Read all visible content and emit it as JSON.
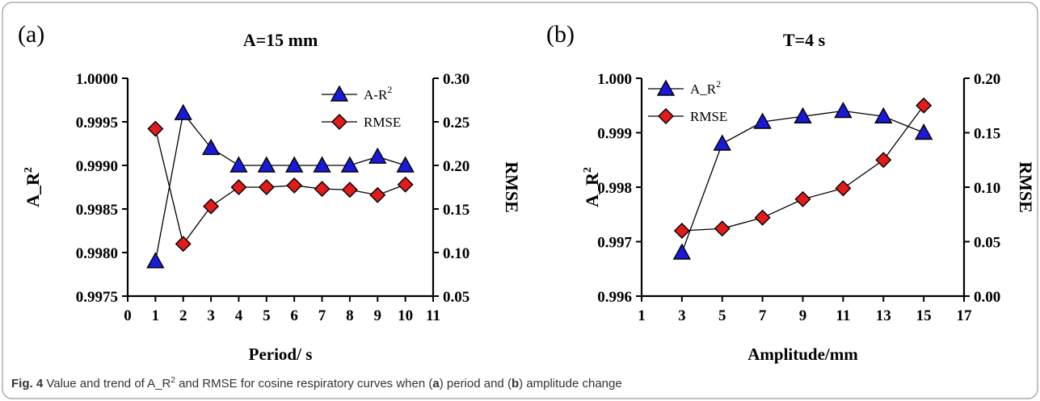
{
  "caption": {
    "fig_label": "Fig. 4",
    "text_before": "Value and trend of A_R",
    "superscript": "2",
    "text_mid1": "and RMSE for cosine respiratory curves when (",
    "label_a": "a",
    "text_mid2": ") period and (",
    "label_b": "b",
    "text_end": ") amplitude change"
  },
  "chart_data": [
    {
      "type": "line",
      "panel_label": "(a)",
      "title": "A=15 mm",
      "xlabel": "Period/ s",
      "ylabel_left": "A_R",
      "ylabel_left_sup": "2",
      "ylabel_right": "RMSE",
      "xlim": [
        0,
        11
      ],
      "xticks": [
        "0",
        "1",
        "2",
        "3",
        "4",
        "5",
        "6",
        "7",
        "8",
        "9",
        "10",
        "11"
      ],
      "ylim_left": [
        0.9975,
        1.0
      ],
      "yticks_left": [
        "0.9975",
        "0.9980",
        "0.9985",
        "0.9990",
        "0.9995",
        "1.0000"
      ],
      "ylim_right": [
        0.05,
        0.3
      ],
      "yticks_right": [
        "0.05",
        "0.10",
        "0.15",
        "0.20",
        "0.25",
        "0.30"
      ],
      "x": [
        1,
        2,
        3,
        4,
        5,
        6,
        7,
        8,
        9,
        10
      ],
      "series": [
        {
          "name": "A-R",
          "name_sup": "2",
          "axis": "left",
          "marker": "triangle",
          "color": "#1a1ad6",
          "values": [
            0.9979,
            0.9996,
            0.9992,
            0.999,
            0.999,
            0.999,
            0.999,
            0.999,
            0.9991,
            0.999
          ]
        },
        {
          "name": "RMSE",
          "name_sup": "",
          "axis": "right",
          "marker": "diamond",
          "color": "#e21b1b",
          "values": [
            0.242,
            0.11,
            0.153,
            0.175,
            0.175,
            0.177,
            0.173,
            0.172,
            0.166,
            0.178
          ]
        }
      ],
      "legend": "top-right"
    },
    {
      "type": "line",
      "panel_label": "(b)",
      "title": "T=4 s",
      "xlabel": "Amplitude/mm",
      "ylabel_left": "A_R",
      "ylabel_left_sup": "2",
      "ylabel_right": "RMSE",
      "xlim": [
        1,
        17
      ],
      "xticks": [
        "1",
        "3",
        "5",
        "7",
        "9",
        "11",
        "13",
        "15",
        "17"
      ],
      "ylim_left": [
        0.996,
        1.0
      ],
      "yticks_left": [
        "0.996",
        "0.997",
        "0.998",
        "0.999",
        "1.000"
      ],
      "ylim_right": [
        0.0,
        0.2
      ],
      "yticks_right": [
        "0.00",
        "0.05",
        "0.10",
        "0.15",
        "0.20"
      ],
      "x": [
        3,
        5,
        7,
        9,
        11,
        13,
        15
      ],
      "series": [
        {
          "name": "A_R",
          "name_sup": "2",
          "axis": "left",
          "marker": "triangle",
          "color": "#1a1ad6",
          "values": [
            0.9968,
            0.9988,
            0.9992,
            0.9993,
            0.9994,
            0.9993,
            0.999
          ]
        },
        {
          "name": "RMSE",
          "name_sup": "",
          "axis": "right",
          "marker": "diamond",
          "color": "#e21b1b",
          "values": [
            0.06,
            0.062,
            0.072,
            0.089,
            0.099,
            0.125,
            0.175
          ]
        }
      ],
      "legend": "top-left"
    }
  ]
}
